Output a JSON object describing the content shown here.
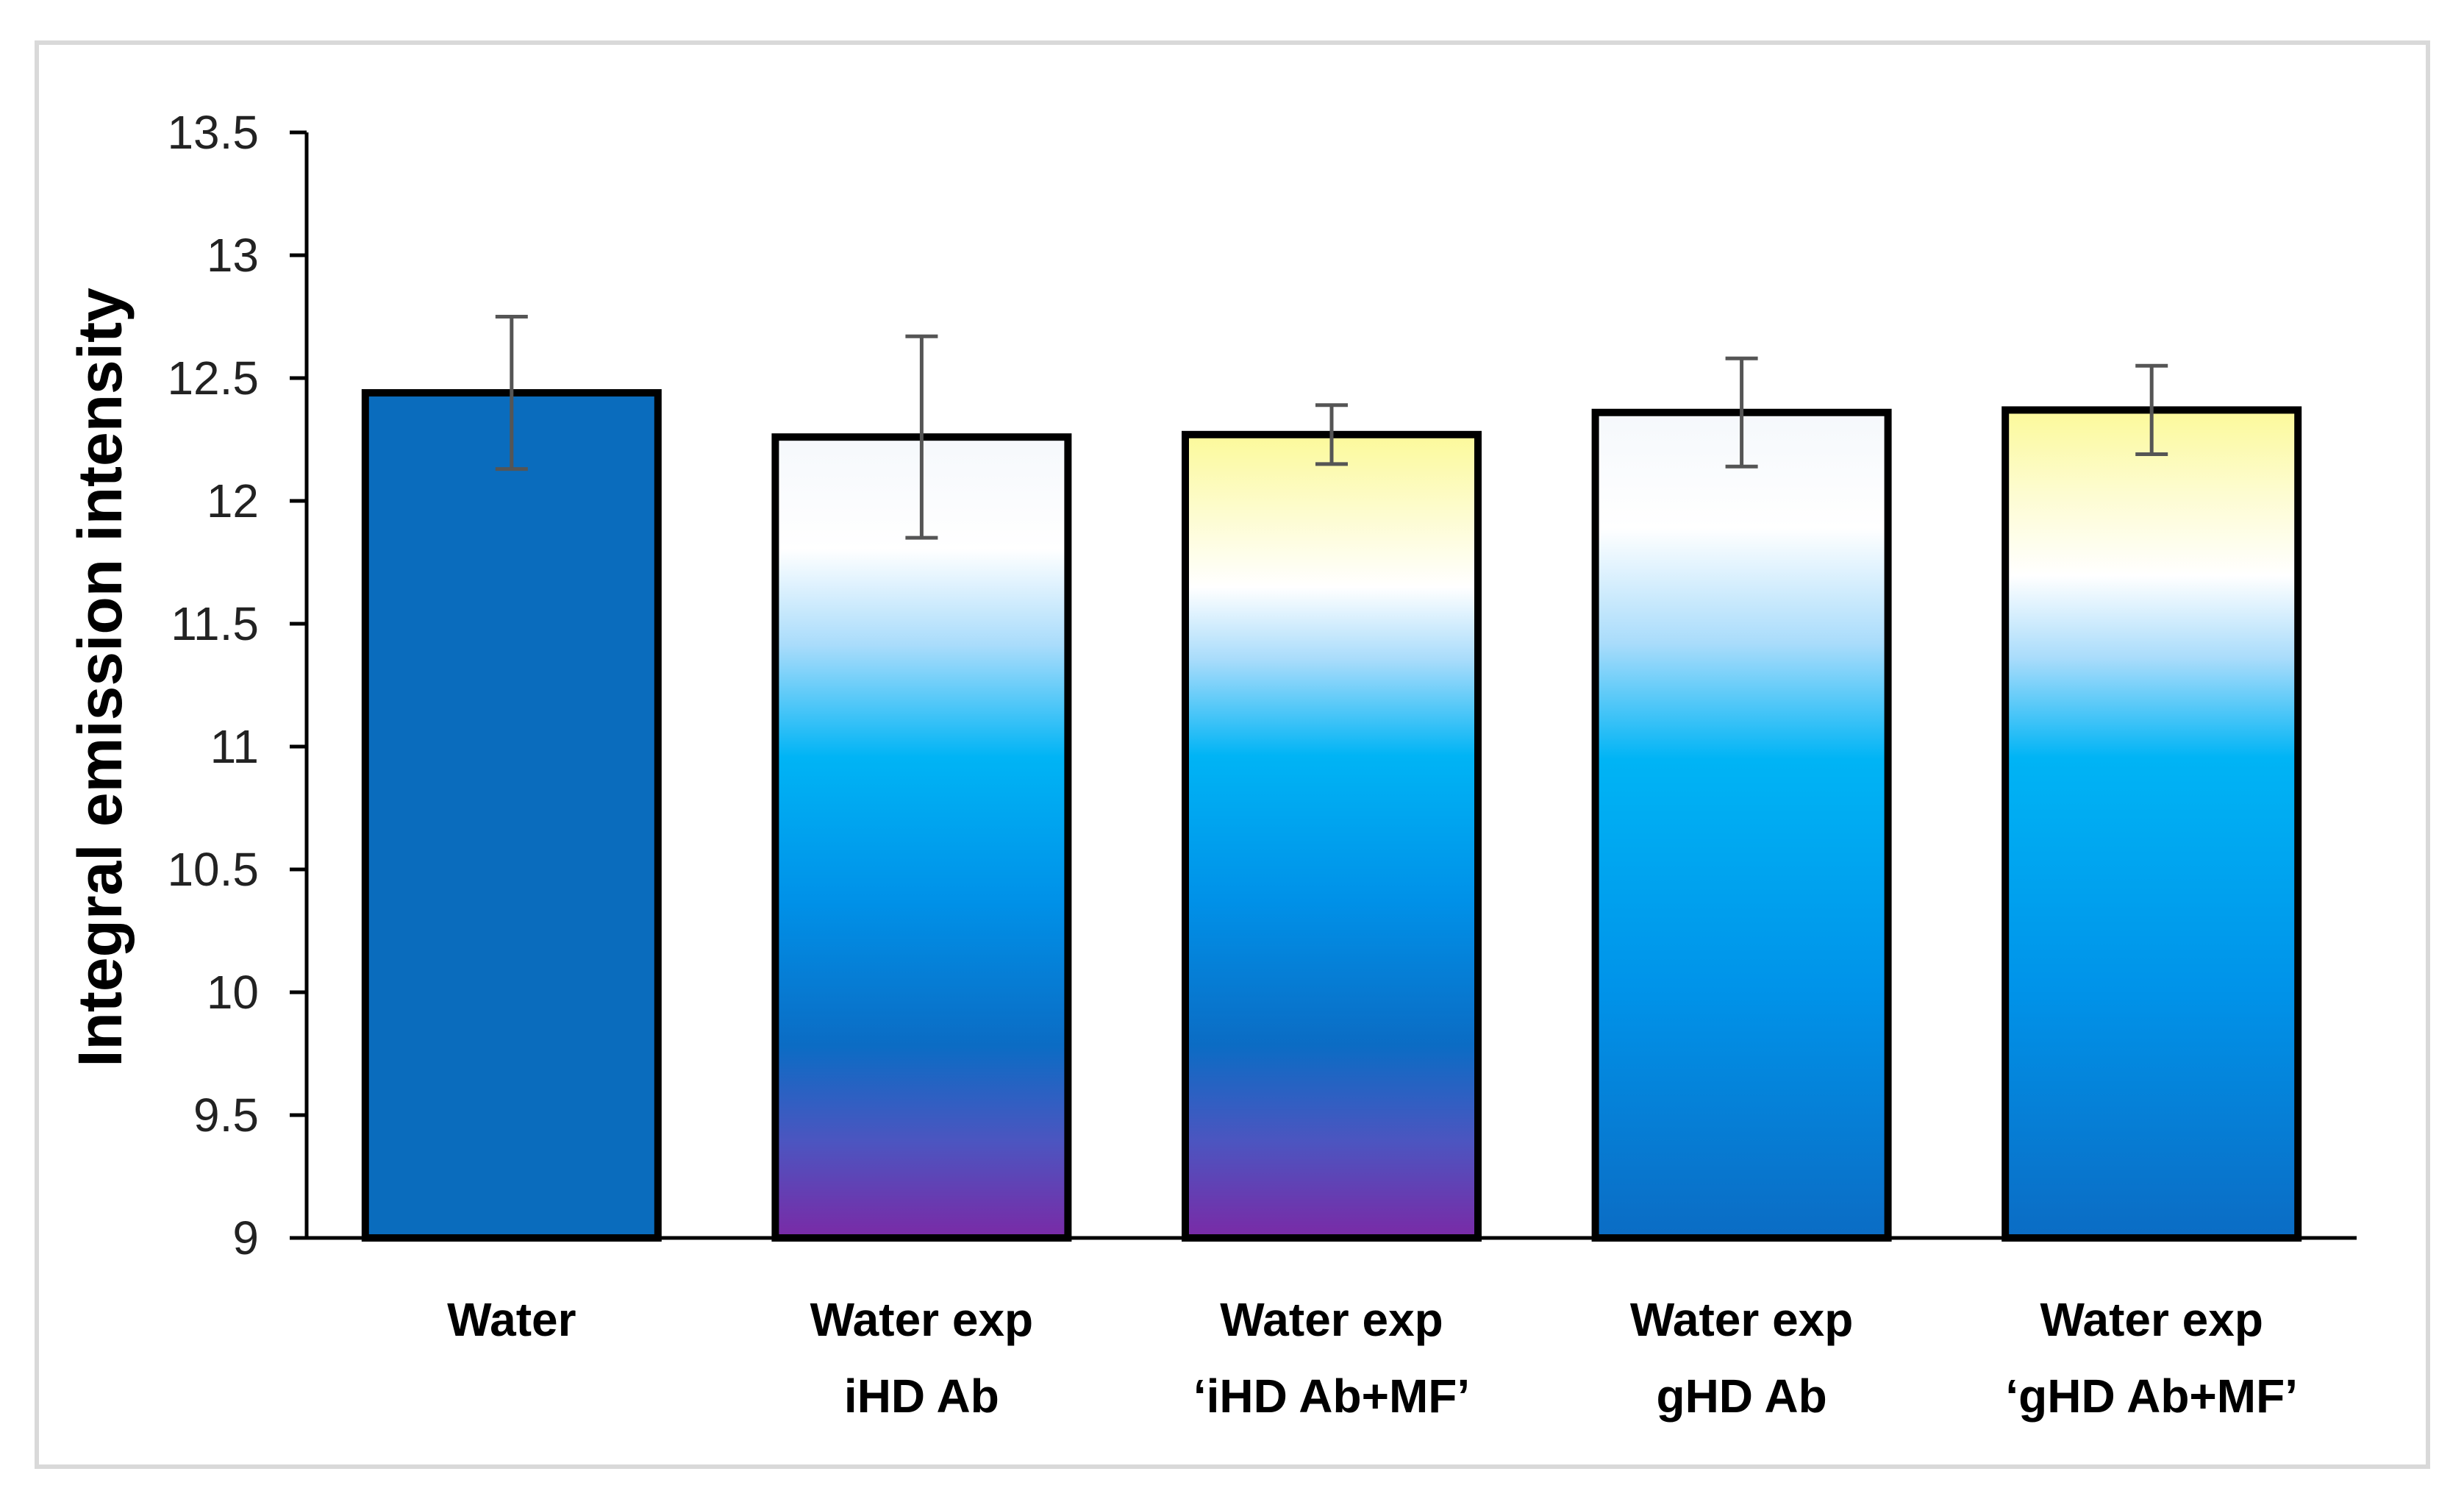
{
  "chart_data": {
    "type": "bar",
    "title": "",
    "xlabel": "",
    "ylabel": "Integral emission intensity",
    "ylim": [
      9,
      13.5
    ],
    "yticks": [
      9,
      9.5,
      10,
      10.5,
      11,
      11.5,
      12,
      12.5,
      13,
      13.5
    ],
    "ytick_labels": [
      "9",
      "9.5",
      "10",
      "10.5",
      "11",
      "11.5",
      "12",
      "12.5",
      "13",
      "13.5"
    ],
    "grid": false,
    "legend": "none",
    "categories": [
      [
        "Water"
      ],
      [
        "Water exp",
        "iHD Ab"
      ],
      [
        "Water  exp",
        "‘iHD Ab+MF’"
      ],
      [
        "Water exp",
        "gHD Ab"
      ],
      [
        "Water  exp",
        "‘gHD Ab+MF’"
      ]
    ],
    "values": [
      12.44,
      12.26,
      12.27,
      12.36,
      12.37
    ],
    "error_bars": [
      0.31,
      0.41,
      0.12,
      0.22,
      0.18
    ],
    "bar_fills": [
      "solid-blue",
      "purple-blue-white",
      "purple-blue-white-yellow",
      "blue-white",
      "blue-white-yellow"
    ]
  },
  "colors": {
    "solid_blue": "#0a6cbd",
    "purple": "#7a2aa6",
    "deep_blue": "#0b6cc4",
    "azure": "#00b4f5",
    "light_sky": "#a9dcfb",
    "white": "#ffffff",
    "pale_yellow": "#fcf99a",
    "error_bar": "#555555",
    "axis": "#000000",
    "frame_border": "#d9d9d9"
  }
}
